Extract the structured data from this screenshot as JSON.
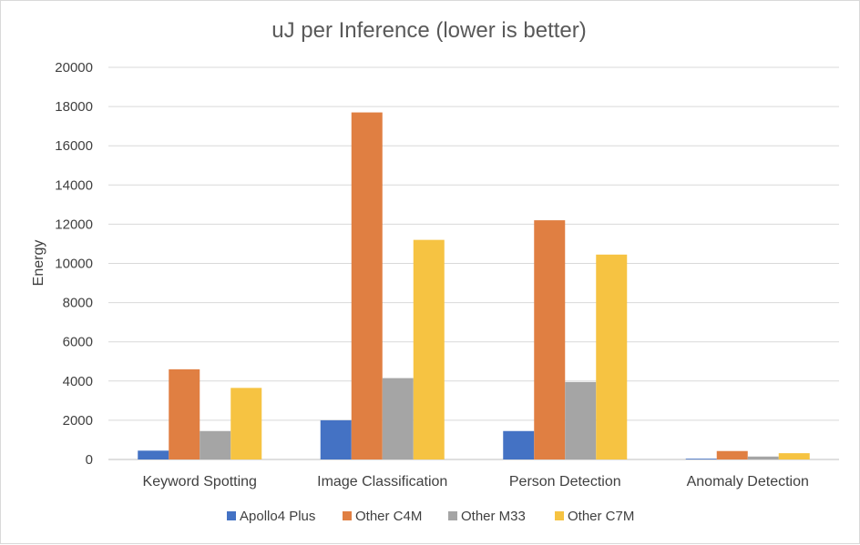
{
  "chart_data": {
    "type": "bar",
    "title": "uJ per Inference (lower is better)",
    "xlabel": "",
    "ylabel": "Energy",
    "ylim": [
      0,
      20000
    ],
    "yticks": [
      0,
      2000,
      4000,
      6000,
      8000,
      10000,
      12000,
      14000,
      16000,
      18000,
      20000
    ],
    "grid": true,
    "legend_position": "bottom",
    "categories": [
      "Keyword Spotting",
      "Image Classification",
      "Person Detection",
      "Anomaly Detection"
    ],
    "series": [
      {
        "name": "Apollo4 Plus",
        "color": "#4472c4",
        "values": [
          450,
          2000,
          1450,
          40
        ]
      },
      {
        "name": "Other C4M",
        "color": "#e07f42",
        "values": [
          4600,
          17700,
          12200,
          430
        ]
      },
      {
        "name": "Other M33",
        "color": "#a5a5a5",
        "values": [
          1450,
          4150,
          3950,
          150
        ]
      },
      {
        "name": "Other C7M",
        "color": "#f6c342",
        "values": [
          3650,
          11200,
          10450,
          320
        ]
      }
    ]
  }
}
